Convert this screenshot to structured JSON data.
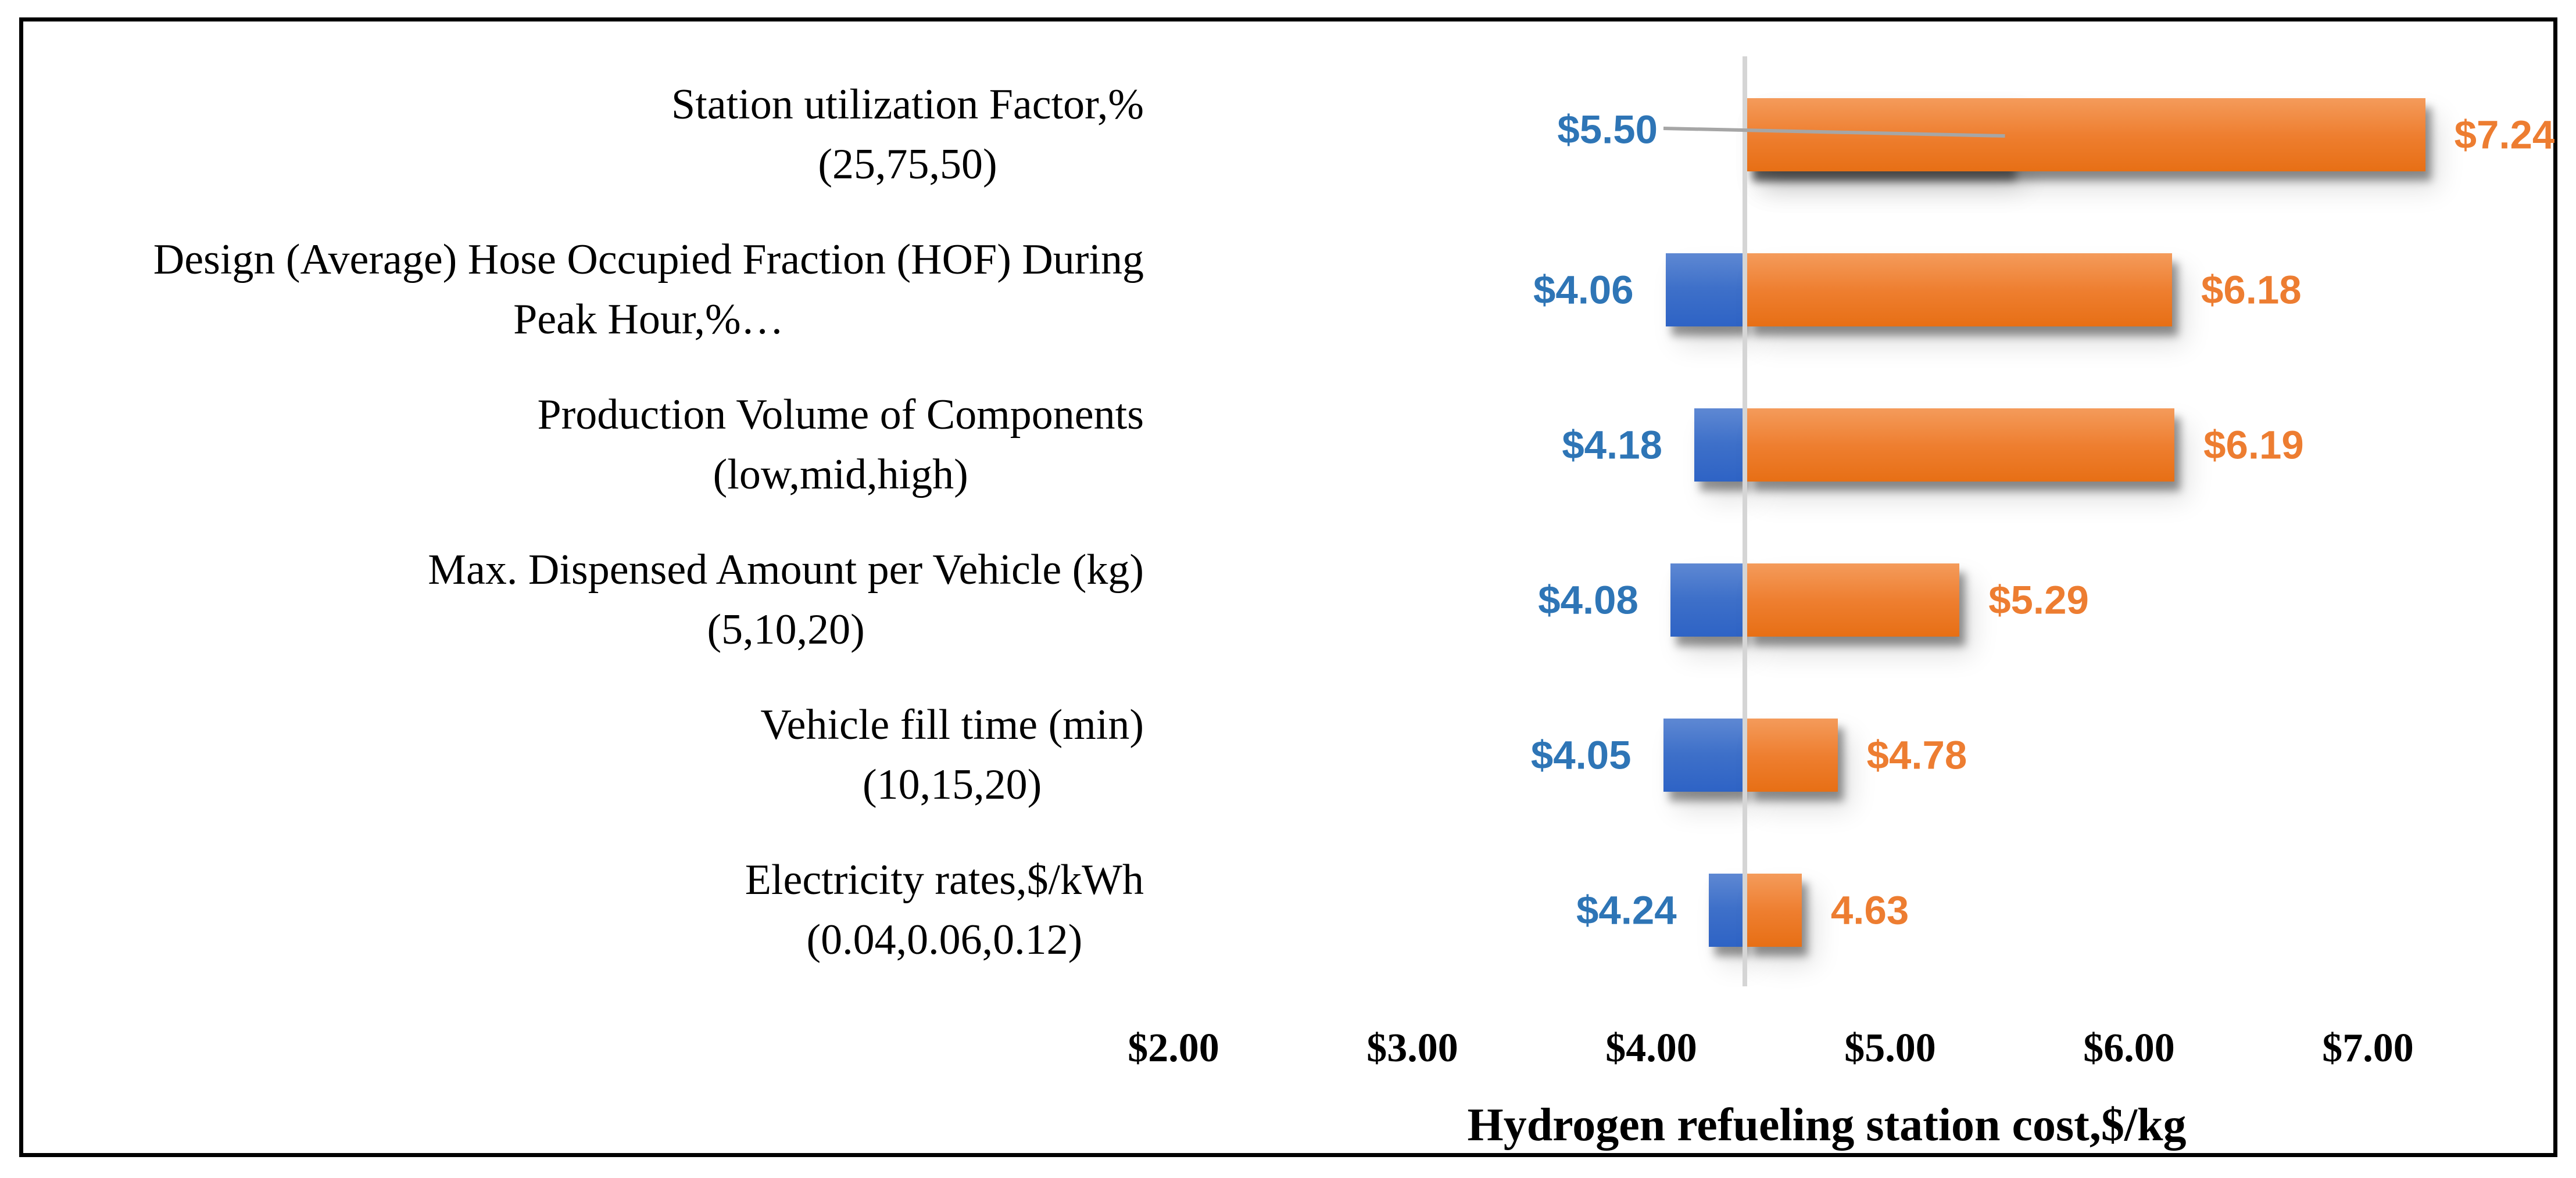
{
  "chart_data": {
    "type": "bar",
    "variant": "tornado-sensitivity",
    "orientation": "horizontal-bars",
    "baseline_value": 4.4,
    "grid": "single-baseline-line-only",
    "legend": "none",
    "x_axis": {
      "title": "Hydrogen refueling station cost,$/kg",
      "tick_values": [
        2,
        3,
        4,
        5,
        6,
        7
      ],
      "tick_labels": [
        "$2.00",
        "$3.00",
        "$4.00",
        "$5.00",
        "$6.00",
        "$7.00"
      ]
    },
    "series_colors": {
      "low_bar": "#3E70C9",
      "high_bar": "#EE7E2F",
      "low_label_text": "#2E75B6",
      "high_label_text": "#ED7D31",
      "baseline_line": "#D5D5D5",
      "leader_line": "#A6A6A6"
    },
    "rows": [
      {
        "category_lines": [
          "Station utilization Factor,%",
          "(25,75,50)"
        ],
        "low": 5.5,
        "high": 7.24,
        "low_label": "$5.50",
        "high_label": "$7.24",
        "low_label_has_leader": true
      },
      {
        "category_lines": [
          "Design (Average) Hose Occupied Fraction (HOF) During",
          "Peak Hour,%…"
        ],
        "low": 4.06,
        "high": 6.18,
        "low_label": "$4.06",
        "high_label": "$6.18",
        "low_label_has_leader": false
      },
      {
        "category_lines": [
          "Production Volume of Components",
          "(low,mid,high)"
        ],
        "low": 4.18,
        "high": 6.19,
        "low_label": "$4.18",
        "high_label": "$6.19",
        "low_label_has_leader": false
      },
      {
        "category_lines": [
          "Max. Dispensed Amount per Vehicle (kg)",
          "(5,10,20)"
        ],
        "low": 4.08,
        "high": 5.29,
        "low_label": "$4.08",
        "high_label": "$5.29",
        "low_label_has_leader": false
      },
      {
        "category_lines": [
          "Vehicle fill time (min)",
          "(10,15,20)"
        ],
        "low": 4.05,
        "high": 4.78,
        "low_label": "$4.05",
        "high_label": "$4.78",
        "low_label_has_leader": false
      },
      {
        "category_lines": [
          "Electricity rates,$/kWh",
          "(0.04,0.06,0.12)"
        ],
        "low": 4.24,
        "high": 4.63,
        "low_label": "$4.24",
        "high_label": "4.63",
        "low_label_has_leader": false
      }
    ]
  }
}
